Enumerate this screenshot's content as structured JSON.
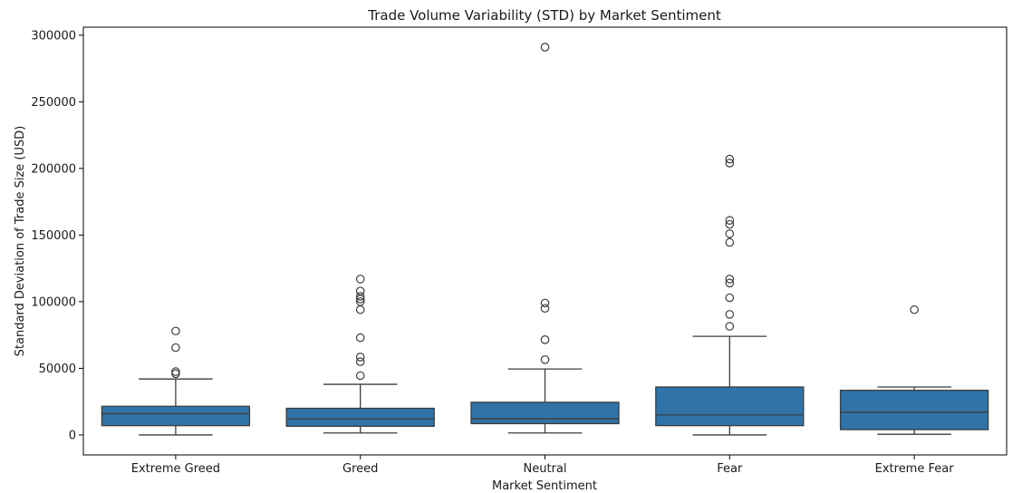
{
  "chart_data": {
    "type": "box",
    "title": "Trade Volume Variability (STD) by Market Sentiment",
    "xlabel": "Market Sentiment",
    "ylabel": "Standard Deviation of Trade Size (USD)",
    "ylim": [
      -15000,
      306000
    ],
    "yticks": [
      0,
      50000,
      100000,
      150000,
      200000,
      250000,
      300000
    ],
    "box_color": "#2f73a8",
    "grid": false,
    "categories": [
      "Extreme Greed",
      "Greed",
      "Neutral",
      "Fear",
      "Extreme Fear"
    ],
    "boxes": [
      {
        "category": "Extreme Greed",
        "whisker_low": 0,
        "q1": 7000,
        "median": 16000,
        "q3": 21500,
        "whisker_high": 42000,
        "outliers": [
          78000,
          65500,
          47500,
          46000
        ]
      },
      {
        "category": "Greed",
        "whisker_low": 1500,
        "q1": 6500,
        "median": 12000,
        "q3": 20000,
        "whisker_high": 38000,
        "outliers": [
          117000,
          108000,
          104000,
          102000,
          100000,
          94000,
          73000,
          58500,
          55000,
          44500
        ]
      },
      {
        "category": "Neutral",
        "whisker_low": 1500,
        "q1": 8500,
        "median": 12000,
        "q3": 24500,
        "whisker_high": 49500,
        "outliers": [
          291000,
          99000,
          95000,
          71500,
          56500
        ]
      },
      {
        "category": "Fear",
        "whisker_low": 0,
        "q1": 7000,
        "median": 15000,
        "q3": 36000,
        "whisker_high": 74000,
        "outliers": [
          207000,
          204000,
          161000,
          158000,
          151000,
          144500,
          117000,
          114000,
          103000,
          90500,
          81500
        ]
      },
      {
        "category": "Extreme Fear",
        "whisker_low": 500,
        "q1": 4000,
        "median": 17000,
        "q3": 33500,
        "whisker_high": 36000,
        "outliers": [
          94000
        ]
      }
    ]
  }
}
